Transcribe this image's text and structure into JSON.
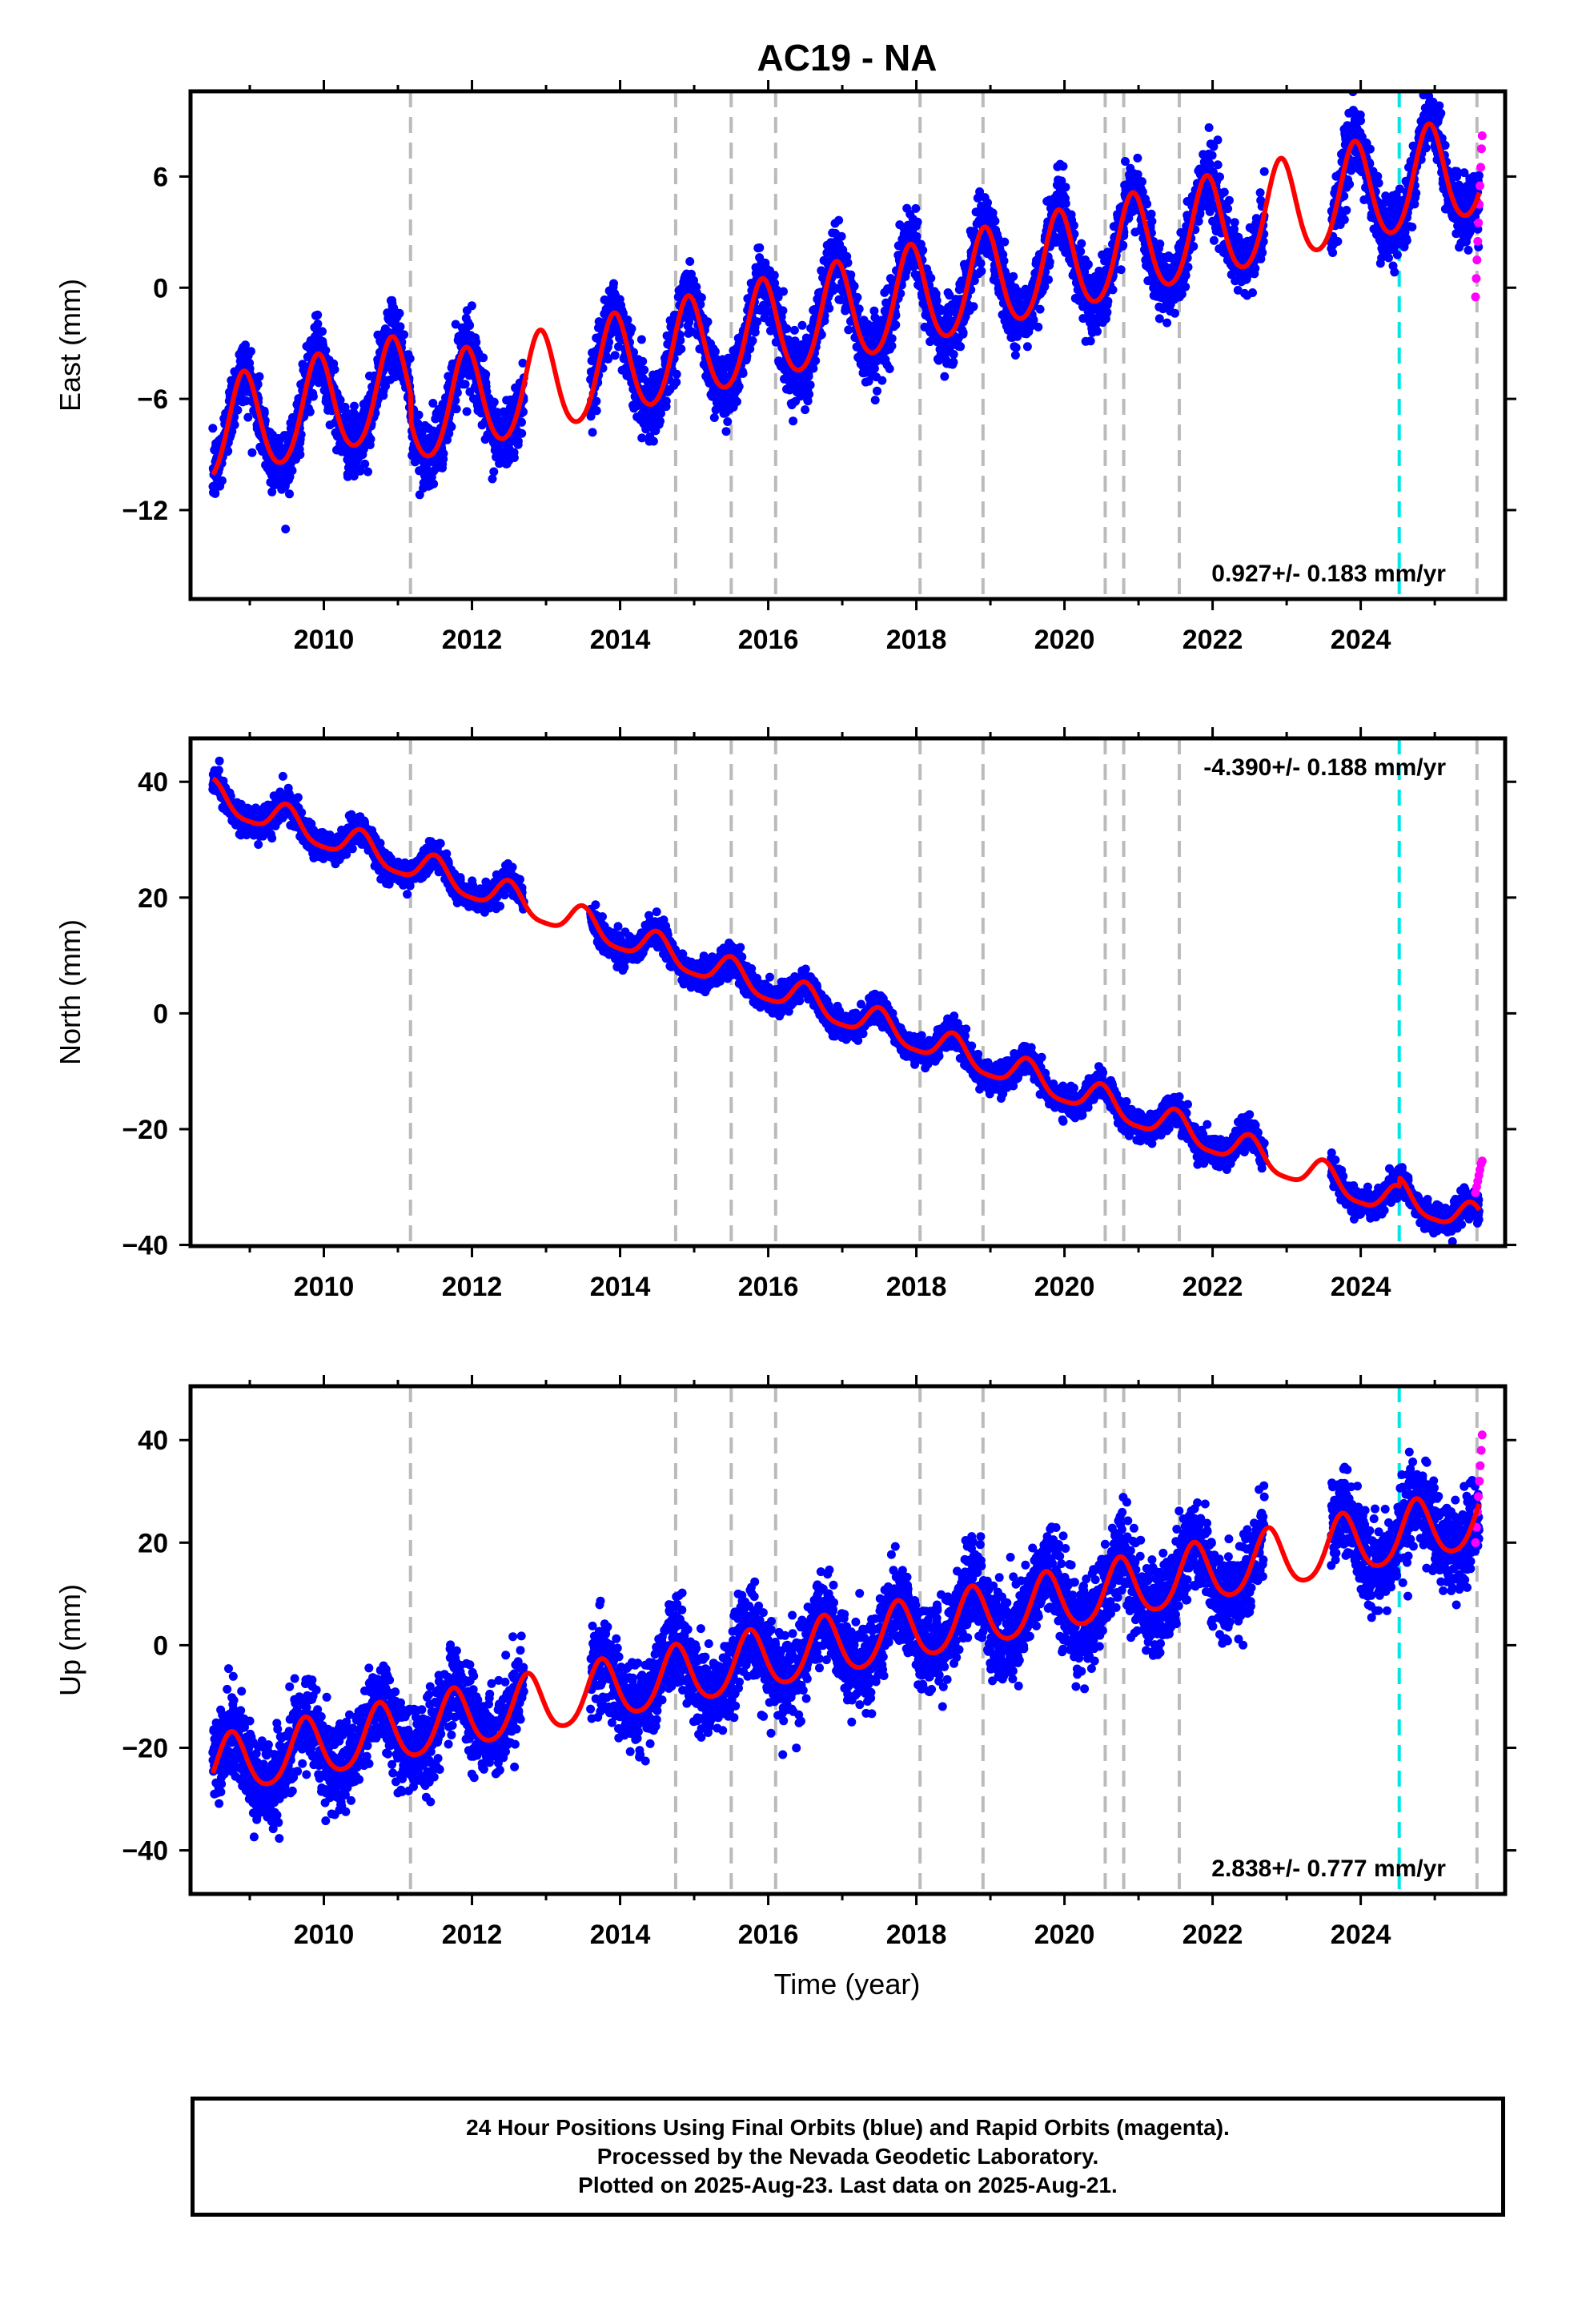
{
  "title": "AC19 - NA",
  "xlabel": "Time (year)",
  "x_ticks": [
    "2010",
    "2012",
    "2014",
    "2016",
    "2018",
    "2020",
    "2022",
    "2024"
  ],
  "footer": {
    "line1": "24 Hour Positions Using Final Orbits (blue) and Rapid Orbits (magenta).",
    "line2": "Processed by the Nevada Geodetic Laboratory.",
    "line3": "Plotted on 2025-Aug-23. Last data on 2025-Aug-21."
  },
  "colors": {
    "final_orbits": "#0000ff",
    "rapid_orbits": "#ff00ff",
    "model_fit": "#ff0000",
    "equipment_change": "#bbbbbb",
    "other_event": "#00e5e5"
  },
  "chart_data": [
    {
      "type": "scatter",
      "panel": "east",
      "ylabel": "East (mm)",
      "xlim": [
        2008.2,
        2025.95
      ],
      "ylim": [
        -16.8,
        10.6
      ],
      "y_ticks": [
        6,
        0,
        -6,
        -12
      ],
      "rate_label": "0.927+/- 0.183 mm/yr",
      "rate_position": "bottom-right",
      "grid": false,
      "gray_dashed_lines": [
        2011.17,
        2014.75,
        2015.5,
        2016.1,
        2018.05,
        2018.9,
        2020.55,
        2020.8,
        2021.55,
        2025.57
      ],
      "cyan_dashed_lines": [
        2024.52
      ],
      "data_range": [
        2008.5,
        2025.6
      ],
      "rapid_range": [
        2025.55,
        2025.64
      ],
      "gaps": [
        [
          2012.7,
          2013.6
        ],
        [
          2022.7,
          2023.6
        ]
      ],
      "model": {
        "reference_year": 2017.0,
        "offset": 0.0,
        "rate": 0.927,
        "annual_amplitude": 2.7,
        "annual_phase_peak": 0.92,
        "semiannual_amplitude": 0.3,
        "noise_sd": 0.9,
        "steps": [
          {
            "year": 2011.17,
            "value": -1.5
          }
        ]
      },
      "rapid_values": [
        -0.5,
        0.5,
        1.5,
        2.5,
        3.5,
        4.5,
        5.5,
        6.5,
        7.5,
        8.2
      ]
    },
    {
      "type": "scatter",
      "panel": "north",
      "ylabel": "North (mm)",
      "xlim": [
        2008.2,
        2025.95
      ],
      "ylim": [
        -40.2,
        47.5
      ],
      "y_ticks": [
        40,
        20,
        0,
        -20,
        -40
      ],
      "rate_label": "-4.390+/- 0.188 mm/yr",
      "rate_position": "top-right",
      "grid": false,
      "gray_dashed_lines": [
        2011.17,
        2014.75,
        2015.5,
        2016.1,
        2018.05,
        2018.9,
        2020.55,
        2020.8,
        2021.55,
        2025.57
      ],
      "cyan_dashed_lines": [
        2024.52
      ],
      "data_range": [
        2008.5,
        2025.6
      ],
      "rapid_range": [
        2025.55,
        2025.64
      ],
      "gaps": [
        [
          2012.7,
          2013.6
        ],
        [
          2022.7,
          2023.6
        ]
      ],
      "model": {
        "reference_year": 2017.0,
        "offset": 0.0,
        "rate": -4.39,
        "annual_amplitude": 2.6,
        "annual_phase_peak": 0.5,
        "semiannual_amplitude": 0.6,
        "noise_sd": 1.2,
        "steps": [
          {
            "year": 2024.52,
            "value": 1.5
          }
        ]
      },
      "rapid_values": [
        -31,
        -30,
        -29,
        -28,
        -27,
        -26,
        -25.5
      ]
    },
    {
      "type": "scatter",
      "panel": "up",
      "ylabel": "Up (mm)",
      "xlim": [
        2008.2,
        2025.95
      ],
      "ylim": [
        -48.5,
        50.5
      ],
      "y_ticks": [
        40,
        20,
        0,
        -20,
        -40
      ],
      "rate_label": "2.838+/- 0.777 mm/yr",
      "rate_position": "bottom-right",
      "grid": false,
      "gray_dashed_lines": [
        2011.17,
        2014.75,
        2015.5,
        2016.1,
        2018.05,
        2018.9,
        2020.55,
        2020.8,
        2021.55,
        2025.57
      ],
      "cyan_dashed_lines": [
        2024.52
      ],
      "data_range": [
        2008.5,
        2025.6
      ],
      "rapid_range": [
        2025.55,
        2025.64
      ],
      "gaps": [
        [
          2012.7,
          2013.6
        ],
        [
          2022.7,
          2023.6
        ]
      ],
      "model": {
        "reference_year": 2017.0,
        "offset": 0.0,
        "rate": 2.838,
        "annual_amplitude": 5.8,
        "annual_phase_peak": 0.75,
        "semiannual_amplitude": 0.8,
        "noise_sd": 4.2,
        "steps": []
      },
      "rapid_values": [
        20,
        23,
        26,
        29,
        32,
        35,
        38,
        41
      ]
    }
  ]
}
